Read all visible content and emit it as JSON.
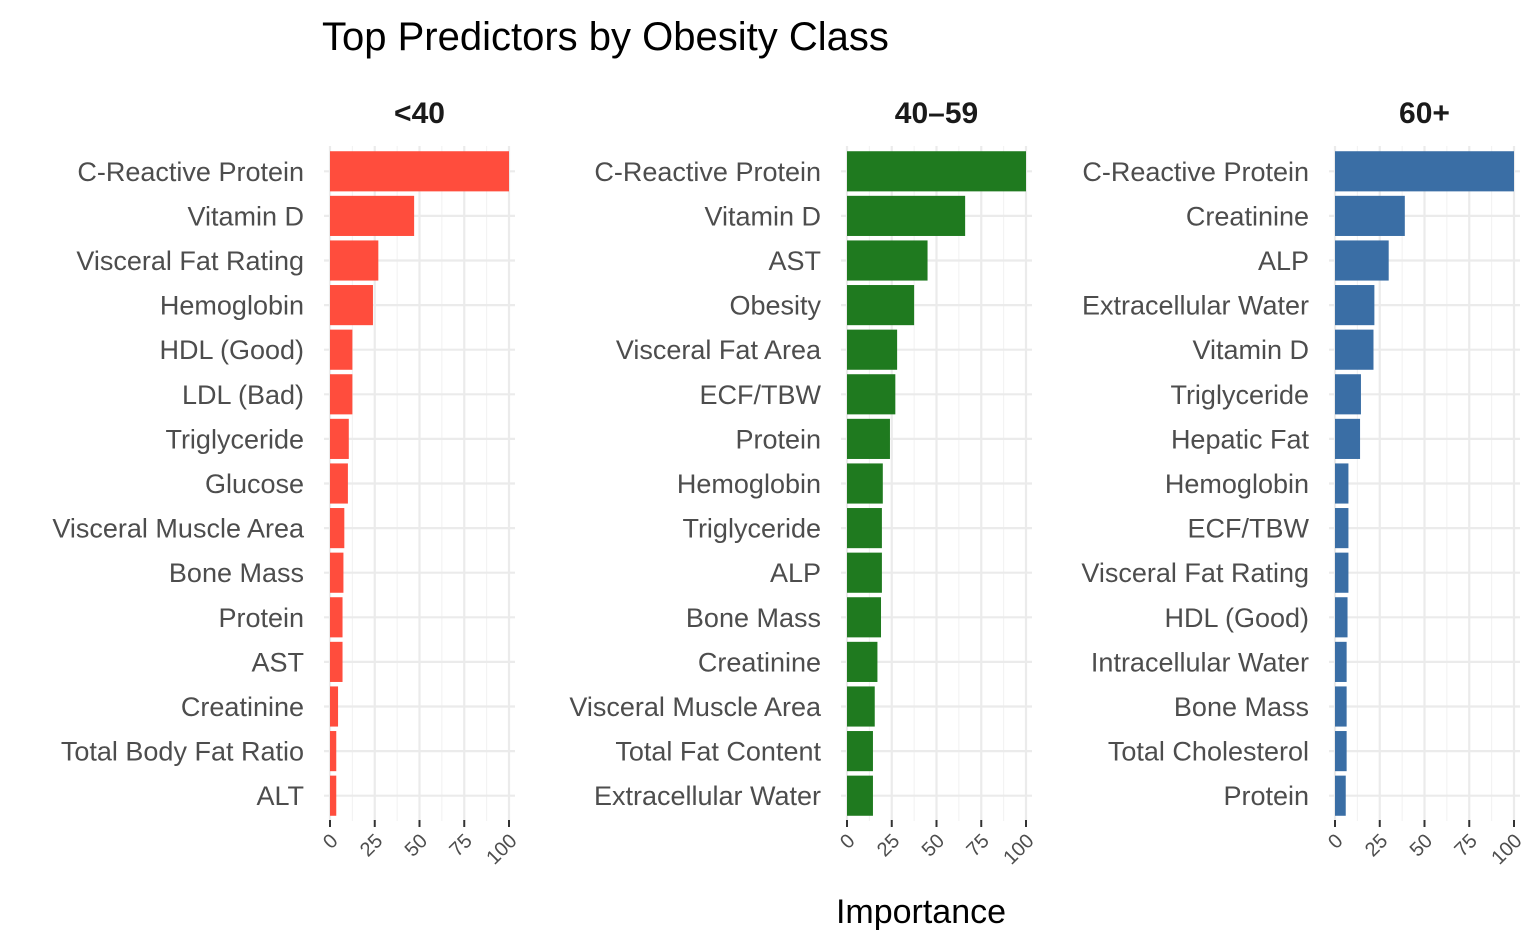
{
  "chart_data": {
    "type": "bar",
    "orientation": "horizontal",
    "title": "Top Predictors by Obesity Class",
    "xlabel": "Importance",
    "ylabel": "",
    "xlim": [
      0,
      100
    ],
    "x_ticks": [
      "0",
      "25",
      "50",
      "75",
      "100"
    ],
    "grid": true,
    "facets": [
      {
        "label": "<40",
        "color": "#FF4D3D",
        "categories": [
          "C-Reactive Protein",
          "Vitamin D",
          "Visceral Fat Rating",
          "Hemoglobin",
          "HDL (Good)",
          "LDL (Bad)",
          "Triglyceride",
          "Glucose",
          "Visceral Muscle Area",
          "Bone Mass",
          "Protein",
          "AST",
          "Creatinine",
          "Total Body Fat Ratio",
          "ALT"
        ],
        "values": [
          100,
          47,
          27,
          24,
          12.5,
          12.5,
          10.5,
          10,
          8,
          7.5,
          7,
          7,
          4.5,
          3.5,
          3.5
        ]
      },
      {
        "label": "40–59",
        "color": "#1F7A1F",
        "categories": [
          "C-Reactive Protein",
          "Vitamin D",
          "AST",
          "Obesity",
          "Visceral Fat Area",
          "ECF/TBW",
          "Protein",
          "Hemoglobin",
          "Triglyceride",
          "ALP",
          "Bone Mass",
          "Creatinine",
          "Visceral Muscle Area",
          "Total Fat Content",
          "Extracellular Water"
        ],
        "values": [
          100,
          66,
          45,
          37.5,
          28,
          27,
          24,
          20,
          19.5,
          19.5,
          19,
          17,
          15.5,
          14.5,
          14.5
        ]
      },
      {
        "label": "60+",
        "color": "#3A6EA5",
        "categories": [
          "C-Reactive Protein",
          "Creatinine",
          "ALP",
          "Extracellular Water",
          "Vitamin D",
          "Triglyceride",
          "Hepatic Fat",
          "Hemoglobin",
          "ECF/TBW",
          "Visceral Fat Rating",
          "HDL (Good)",
          "Intracellular Water",
          "Bone Mass",
          "Total Cholesterol",
          "Protein"
        ],
        "values": [
          100,
          39,
          30,
          22,
          21.5,
          14.5,
          14,
          7.5,
          7.5,
          7.5,
          7,
          6.5,
          6.5,
          6.5,
          6
        ]
      }
    ]
  }
}
